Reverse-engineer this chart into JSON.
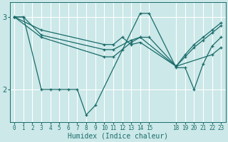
{
  "background_color": "#cce8e8",
  "grid_color": "#ffffff",
  "line_color": "#1a6b6b",
  "xlabel": "Humidex (Indice chaleur)",
  "xlim": [
    -0.5,
    23.5
  ],
  "ylim": [
    1.55,
    3.2
  ],
  "yticks": [
    2,
    3
  ],
  "xticks": [
    0,
    1,
    2,
    3,
    4,
    5,
    6,
    7,
    8,
    9,
    10,
    11,
    12,
    13,
    14,
    15,
    18,
    19,
    20,
    21,
    22,
    23
  ],
  "lines": [
    {
      "x": [
        0,
        1,
        3,
        4,
        5,
        6,
        7,
        8,
        9,
        14,
        15,
        18,
        19,
        20,
        21,
        22,
        23
      ],
      "y": [
        3.0,
        3.0,
        2.0,
        2.0,
        2.0,
        2.0,
        2.0,
        1.65,
        1.78,
        3.05,
        3.05,
        2.3,
        2.3,
        2.0,
        2.35,
        2.6,
        2.72
      ]
    },
    {
      "x": [
        0,
        1,
        3,
        10,
        11,
        13,
        14,
        15,
        18,
        22,
        23
      ],
      "y": [
        3.0,
        3.0,
        2.75,
        2.55,
        2.55,
        2.68,
        2.72,
        2.72,
        2.32,
        2.48,
        2.58
      ]
    },
    {
      "x": [
        0,
        3,
        10,
        11,
        12,
        13,
        14,
        18,
        19,
        20,
        21,
        22,
        23
      ],
      "y": [
        3.0,
        2.72,
        2.45,
        2.45,
        2.55,
        2.65,
        2.72,
        2.32,
        2.45,
        2.58,
        2.68,
        2.78,
        2.88
      ]
    },
    {
      "x": [
        0,
        3,
        10,
        11,
        12,
        13,
        14,
        18,
        19,
        20,
        21,
        22,
        23
      ],
      "y": [
        3.0,
        2.82,
        2.62,
        2.62,
        2.72,
        2.62,
        2.65,
        2.32,
        2.48,
        2.62,
        2.72,
        2.82,
        2.92
      ]
    }
  ]
}
